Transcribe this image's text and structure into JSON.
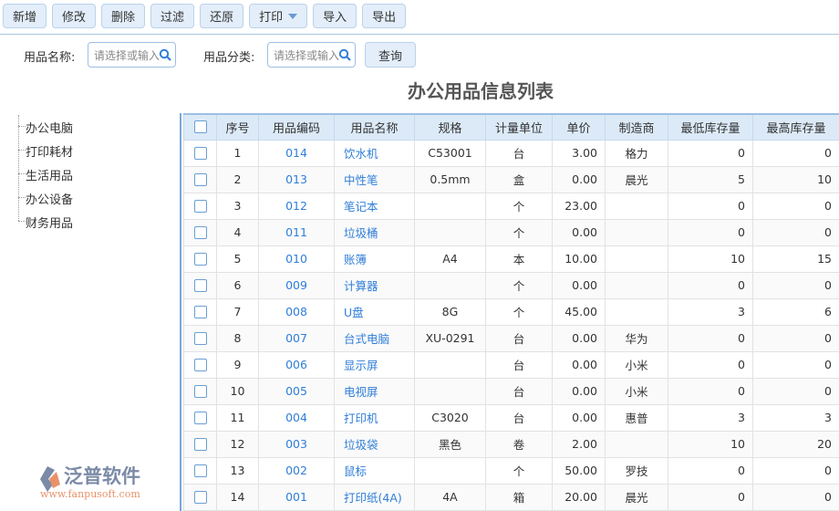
{
  "toolbar": {
    "buttons": [
      "新增",
      "修改",
      "删除",
      "过滤",
      "还原",
      "打印",
      "导入",
      "导出"
    ]
  },
  "search": {
    "name_label": "用品名称:",
    "name_placeholder": "请选择或输入",
    "category_label": "用品分类:",
    "category_placeholder": "请选择或输入",
    "query_label": "查询"
  },
  "title": "办公用品信息列表",
  "tree": [
    "办公电脑",
    "打印耗材",
    "生活用品",
    "办公设备",
    "财务用品"
  ],
  "table": {
    "headers": [
      "序号",
      "用品编码",
      "用品名称",
      "规格",
      "计量单位",
      "单价",
      "制造商",
      "最低库存量",
      "最高库存量"
    ],
    "rows": [
      [
        "1",
        "014",
        "饮水机",
        "C53001",
        "台",
        "3.00",
        "格力",
        "0",
        "0"
      ],
      [
        "2",
        "013",
        "中性笔",
        "0.5mm",
        "盒",
        "0.00",
        "晨光",
        "5",
        "10"
      ],
      [
        "3",
        "012",
        "笔记本",
        "",
        "个",
        "23.00",
        "",
        "0",
        "0"
      ],
      [
        "4",
        "011",
        "垃圾桶",
        "",
        "个",
        "0.00",
        "",
        "0",
        "0"
      ],
      [
        "5",
        "010",
        "账簿",
        "A4",
        "本",
        "10.00",
        "",
        "10",
        "15"
      ],
      [
        "6",
        "009",
        "计算器",
        "",
        "个",
        "0.00",
        "",
        "0",
        "0"
      ],
      [
        "7",
        "008",
        "U盘",
        "8G",
        "个",
        "45.00",
        "",
        "3",
        "6"
      ],
      [
        "8",
        "007",
        "台式电脑",
        "XU-0291",
        "台",
        "0.00",
        "华为",
        "0",
        "0"
      ],
      [
        "9",
        "006",
        "显示屏",
        "",
        "台",
        "0.00",
        "小米",
        "0",
        "0"
      ],
      [
        "10",
        "005",
        "电视屏",
        "",
        "台",
        "0.00",
        "小米",
        "0",
        "0"
      ],
      [
        "11",
        "004",
        "打印机",
        "C3020",
        "台",
        "0.00",
        "惠普",
        "3",
        "3"
      ],
      [
        "12",
        "003",
        "垃圾袋",
        "黑色",
        "卷",
        "2.00",
        "",
        "10",
        "20"
      ],
      [
        "13",
        "002",
        "鼠标",
        "",
        "个",
        "50.00",
        "罗技",
        "0",
        "0"
      ],
      [
        "14",
        "001",
        "打印纸(4A)",
        "4A",
        "箱",
        "20.00",
        "晨光",
        "0",
        "0"
      ]
    ]
  },
  "watermark": {
    "name": "泛普软件",
    "url": "www.fanpusoft.com"
  },
  "colors": {
    "accent": "#2f7ed8",
    "header_bg": "#dceaf8",
    "button_bg": "#e3eefa"
  }
}
